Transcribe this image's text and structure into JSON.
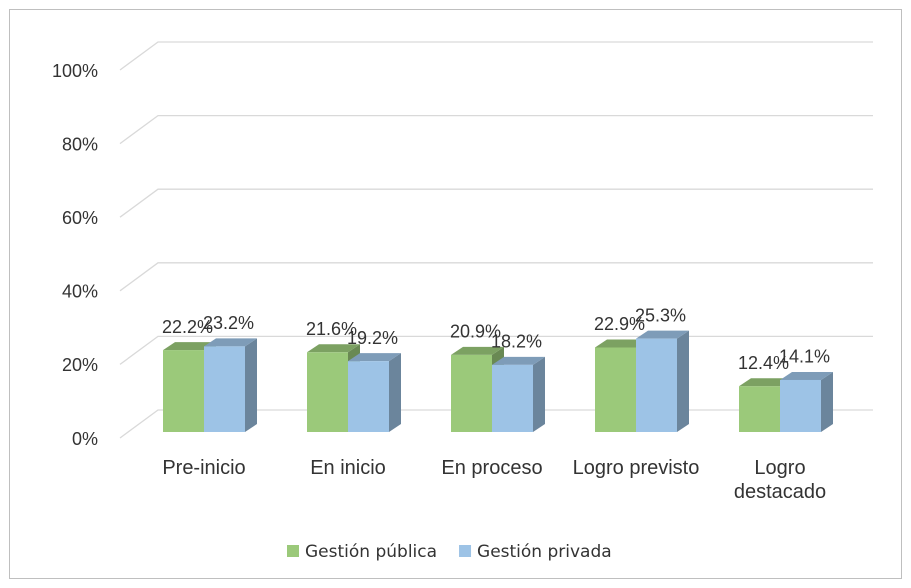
{
  "chart_data": {
    "type": "bar3d",
    "categories": [
      "Pre-inicio",
      "En inicio",
      "En proceso",
      "Logro previsto",
      "Logro destacado"
    ],
    "series": [
      {
        "name": "Gestión pública",
        "color": "#9bc97a",
        "values": [
          22.2,
          21.6,
          20.9,
          22.9,
          12.4
        ],
        "value_labels": [
          "22.2%",
          "21.6%",
          "20.9%",
          "22.9%",
          "12.4%"
        ]
      },
      {
        "name": "Gestión privada",
        "color": "#9dc3e6",
        "values": [
          23.2,
          19.2,
          18.2,
          25.3,
          14.1
        ],
        "value_labels": [
          "23.2%",
          "19.2%",
          "18.2%",
          "25.3%",
          "14.1%"
        ]
      }
    ],
    "ylim": [
      0,
      100
    ],
    "yticks": [
      {
        "value": 0,
        "label": "0%"
      },
      {
        "value": 20,
        "label": "20%"
      },
      {
        "value": 40,
        "label": "40%"
      },
      {
        "value": 60,
        "label": "60%"
      },
      {
        "value": 80,
        "label": "80%"
      },
      {
        "value": 100,
        "label": "100%"
      }
    ],
    "grid": true,
    "legend": "bottom"
  }
}
